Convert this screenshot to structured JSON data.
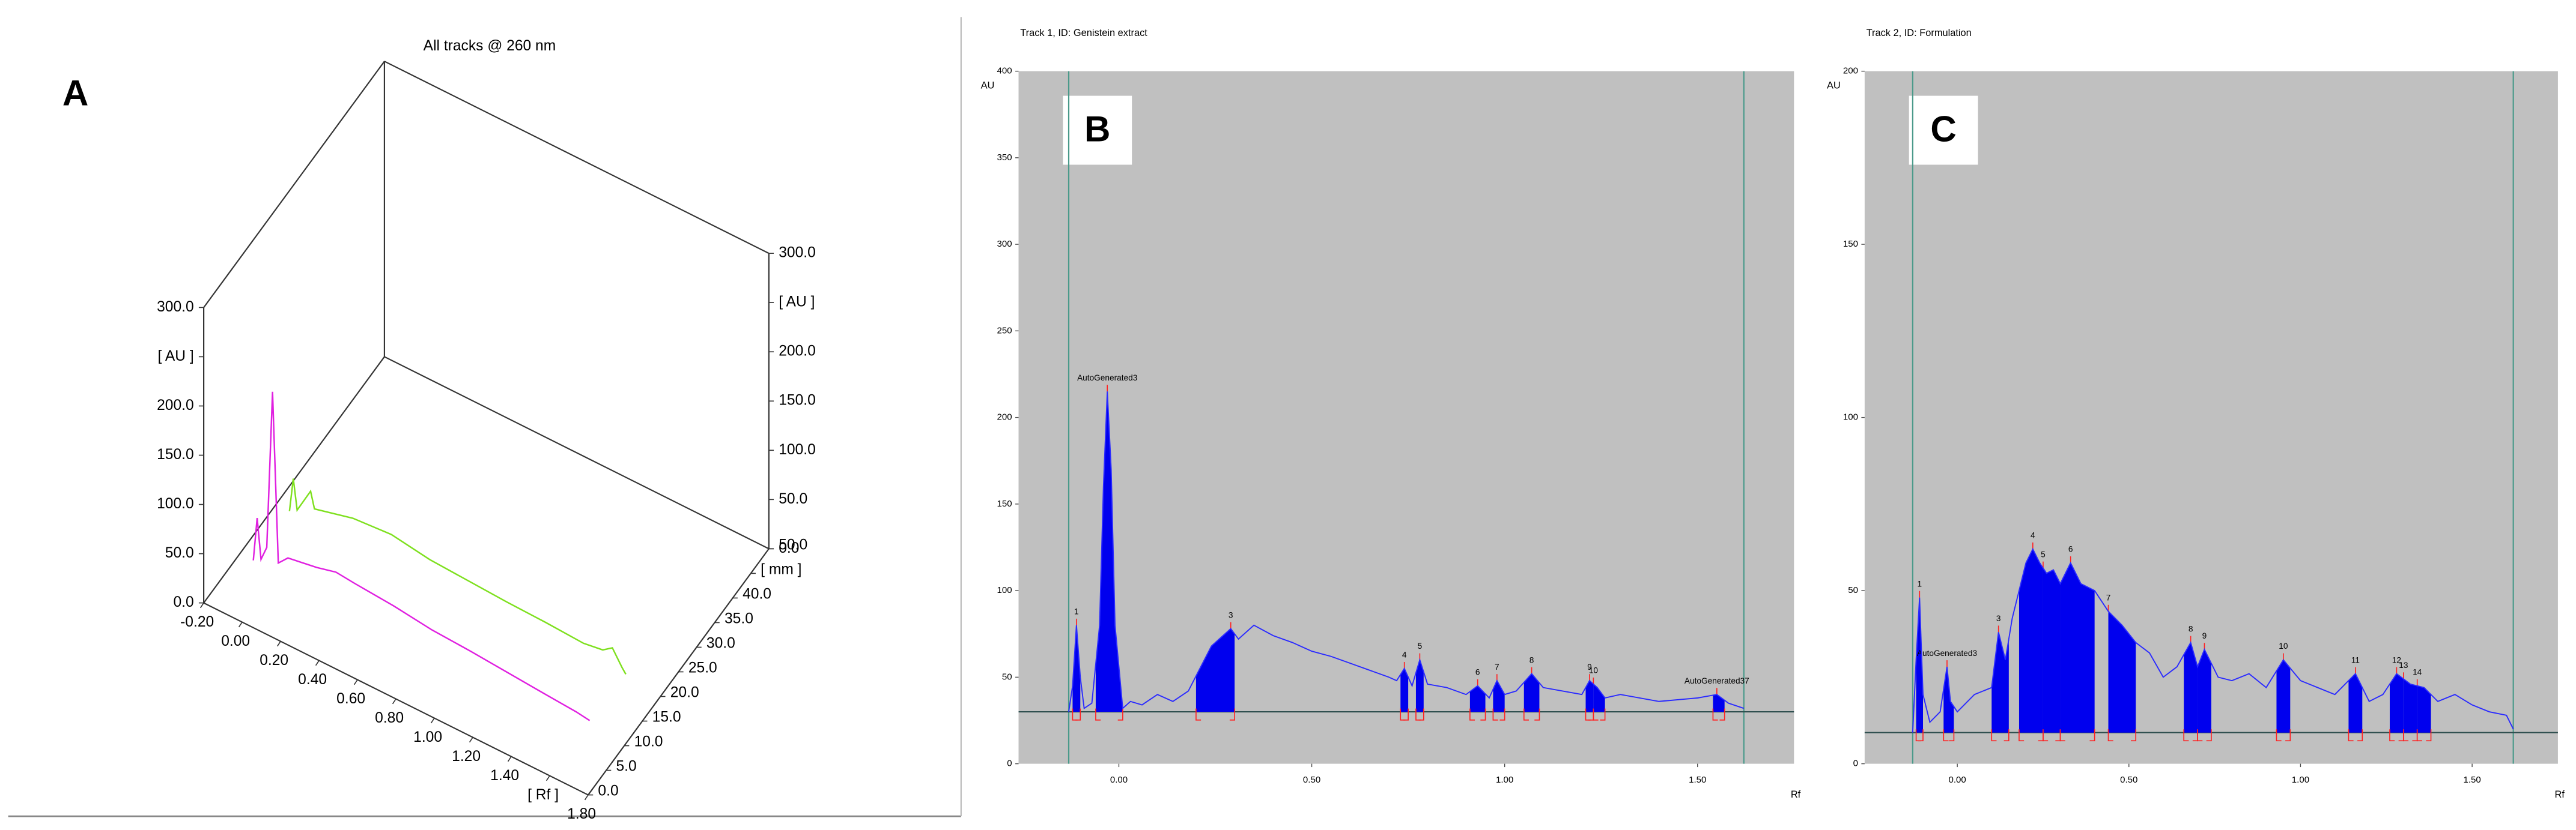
{
  "chart_data": [
    {
      "type": "line3d",
      "panel": "A",
      "title": "All tracks @ 260 nm",
      "xlim": [
        -0.2,
        1.8
      ],
      "ylim": [
        0,
        300
      ],
      "zlim": [
        0,
        50
      ],
      "xticks": [
        {
          "value": -0.2,
          "label": "-0.20"
        },
        {
          "value": 0,
          "label": "0.00"
        },
        {
          "value": 0.2,
          "label": "0.20"
        },
        {
          "value": 0.4,
          "label": "0.40"
        },
        {
          "value": 0.6,
          "label": "0.60"
        },
        {
          "value": 0.8,
          "label": "0.80"
        },
        {
          "value": 1.0,
          "label": "1.00"
        },
        {
          "value": 1.2,
          "label": "1.20"
        },
        {
          "value": 1.4,
          "label": "1.40"
        },
        {
          "value": 1.6,
          "label": "[ Rf ]"
        },
        {
          "value": 1.8,
          "label": "1.80"
        }
      ],
      "yticks": [
        {
          "value": 0,
          "label": "0.0"
        },
        {
          "value": 50,
          "label": "50.0"
        },
        {
          "value": 100,
          "label": "100.0"
        },
        {
          "value": 150,
          "label": "150.0"
        },
        {
          "value": 200,
          "label": "200.0"
        },
        {
          "value": 250,
          "label": "[ AU ]"
        },
        {
          "value": 300,
          "label": "300.0"
        }
      ],
      "zticks": [
        {
          "value": 0,
          "label": "0.0"
        },
        {
          "value": 5,
          "label": "5.0"
        },
        {
          "value": 10,
          "label": "10.0"
        },
        {
          "value": 15,
          "label": "15.0"
        },
        {
          "value": 20,
          "label": "20.0"
        },
        {
          "value": 25,
          "label": "25.0"
        },
        {
          "value": 30,
          "label": "30.0"
        },
        {
          "value": 35,
          "label": "35.0"
        },
        {
          "value": 40,
          "label": "40.0"
        },
        {
          "value": 45,
          "label": "[ mm ]"
        },
        {
          "value": 50,
          "label": "50.0"
        }
      ],
      "series": [
        {
          "color": "#e020e0",
          "depth": 10,
          "x": [
            -0.13,
            -0.11,
            -0.09,
            -0.06,
            -0.03,
            0.0,
            0.05,
            0.2,
            0.3,
            0.4,
            0.6,
            0.8,
            1.0,
            1.2,
            1.4,
            1.55,
            1.62
          ],
          "values": [
            0,
            45,
            5,
            20,
            181,
            10,
            20,
            25,
            30,
            28,
            25,
            20,
            18,
            15,
            12,
            10,
            8
          ]
        },
        {
          "color": "#7ee01e",
          "depth": 20,
          "x": [
            -0.13,
            -0.11,
            -0.09,
            -0.02,
            0.0,
            0.2,
            0.4,
            0.6,
            0.8,
            1.0,
            1.2,
            1.4,
            1.5,
            1.55,
            1.6,
            1.62
          ],
          "values": [
            0,
            35,
            5,
            31,
            15,
            25,
            28,
            22,
            20,
            18,
            17,
            15,
            18,
            25,
            10,
            5
          ]
        }
      ]
    },
    {
      "type": "densitogram",
      "panel": "B",
      "title": "Track 1, ID: Genistein extract",
      "y_label": "AU",
      "x_label": "Rf",
      "xlim": [
        -0.26,
        1.75
      ],
      "ylim": [
        0,
        400
      ],
      "xticks": [
        {
          "value": 0,
          "label": "0.00"
        },
        {
          "value": 0.5,
          "label": "0.50"
        },
        {
          "value": 1.0,
          "label": "1.00"
        },
        {
          "value": 1.5,
          "label": "1.50"
        }
      ],
      "yticks": [
        0,
        50,
        100,
        150,
        200,
        250,
        300,
        350,
        400
      ],
      "start_line": -0.13,
      "front_line": 1.62,
      "baseline": 30,
      "color": "#2a2aff",
      "fill": "#0000ee",
      "x": [
        -0.13,
        -0.12,
        -0.11,
        -0.1,
        -0.09,
        -0.07,
        -0.05,
        -0.04,
        -0.03,
        -0.02,
        -0.01,
        0.01,
        0.03,
        0.06,
        0.1,
        0.14,
        0.18,
        0.21,
        0.24,
        0.27,
        0.29,
        0.31,
        0.35,
        0.4,
        0.45,
        0.5,
        0.55,
        0.6,
        0.65,
        0.7,
        0.72,
        0.74,
        0.76,
        0.78,
        0.8,
        0.85,
        0.9,
        0.93,
        0.96,
        0.98,
        1.0,
        1.03,
        1.07,
        1.1,
        1.15,
        1.2,
        1.22,
        1.24,
        1.26,
        1.3,
        1.4,
        1.5,
        1.55,
        1.58,
        1.62
      ],
      "values": [
        30,
        45,
        80,
        50,
        32,
        35,
        80,
        160,
        215,
        170,
        80,
        32,
        36,
        34,
        40,
        36,
        42,
        55,
        68,
        74,
        78,
        72,
        80,
        74,
        70,
        65,
        62,
        58,
        54,
        50,
        48,
        55,
        45,
        60,
        46,
        44,
        40,
        45,
        38,
        48,
        40,
        42,
        52,
        44,
        42,
        40,
        48,
        44,
        38,
        40,
        36,
        38,
        40,
        35,
        32
      ],
      "peaks": [
        {
          "label": "1",
          "start": -0.12,
          "end": -0.1
        },
        {
          "label": "AutoGenerated3",
          "start": -0.06,
          "end": 0.01
        },
        {
          "label": "3",
          "start": 0.2,
          "end": 0.3
        },
        {
          "label": "4",
          "start": 0.73,
          "end": 0.75
        },
        {
          "label": "5",
          "start": 0.77,
          "end": 0.79
        },
        {
          "label": "6",
          "start": 0.91,
          "end": 0.95
        },
        {
          "label": "7",
          "start": 0.97,
          "end": 1.0
        },
        {
          "label": "8",
          "start": 1.05,
          "end": 1.09
        },
        {
          "label": "9",
          "start": 1.21,
          "end": 1.23
        },
        {
          "label": "10",
          "start": 1.23,
          "end": 1.26
        },
        {
          "label": "AutoGenerated37",
          "start": 1.54,
          "end": 1.57
        }
      ]
    },
    {
      "type": "densitogram",
      "panel": "C",
      "title": "Track 2, ID: Formulation",
      "y_label": "AU",
      "x_label": "Rf",
      "xlim": [
        -0.27,
        1.75
      ],
      "ylim": [
        0,
        200
      ],
      "xticks": [
        {
          "value": 0,
          "label": "0.00"
        },
        {
          "value": 0.5,
          "label": "0.50"
        },
        {
          "value": 1.0,
          "label": "1.00"
        },
        {
          "value": 1.5,
          "label": "1.50"
        }
      ],
      "yticks": [
        0,
        50,
        100,
        150,
        200
      ],
      "start_line": -0.13,
      "front_line": 1.62,
      "baseline": 9,
      "color": "#2a2aff",
      "fill": "#0000ee",
      "x": [
        -0.13,
        -0.12,
        -0.11,
        -0.1,
        -0.08,
        -0.05,
        -0.03,
        -0.02,
        0.0,
        0.05,
        0.1,
        0.12,
        0.14,
        0.16,
        0.18,
        0.2,
        0.22,
        0.24,
        0.26,
        0.28,
        0.3,
        0.33,
        0.36,
        0.4,
        0.44,
        0.48,
        0.52,
        0.56,
        0.6,
        0.64,
        0.68,
        0.7,
        0.72,
        0.76,
        0.8,
        0.85,
        0.9,
        0.95,
        1.0,
        1.05,
        1.1,
        1.16,
        1.2,
        1.24,
        1.28,
        1.32,
        1.36,
        1.4,
        1.45,
        1.5,
        1.55,
        1.6,
        1.62
      ],
      "values": [
        9,
        30,
        48,
        20,
        12,
        15,
        28,
        18,
        15,
        20,
        22,
        38,
        30,
        42,
        50,
        58,
        62,
        58,
        55,
        56,
        52,
        58,
        52,
        50,
        44,
        40,
        35,
        32,
        25,
        28,
        35,
        28,
        33,
        25,
        24,
        26,
        22,
        30,
        24,
        22,
        20,
        26,
        18,
        20,
        26,
        23,
        22,
        18,
        20,
        17,
        15,
        14,
        10
      ],
      "peaks": [
        {
          "label": "1",
          "start": -0.12,
          "end": -0.1
        },
        {
          "label": "AutoGenerated3",
          "start": -0.04,
          "end": -0.01
        },
        {
          "label": "3",
          "start": 0.1,
          "end": 0.15
        },
        {
          "label": "4",
          "start": 0.18,
          "end": 0.25
        },
        {
          "label": "5",
          "start": 0.25,
          "end": 0.3
        },
        {
          "label": "6",
          "start": 0.3,
          "end": 0.4
        },
        {
          "label": "7",
          "start": 0.44,
          "end": 0.52
        },
        {
          "label": "8",
          "start": 0.66,
          "end": 0.7
        },
        {
          "label": "9",
          "start": 0.7,
          "end": 0.74
        },
        {
          "label": "10",
          "start": 0.93,
          "end": 0.97
        },
        {
          "label": "11",
          "start": 1.14,
          "end": 1.18
        },
        {
          "label": "12",
          "start": 1.26,
          "end": 1.3
        },
        {
          "label": "13",
          "start": 1.3,
          "end": 1.34
        },
        {
          "label": "14",
          "start": 1.34,
          "end": 1.38
        }
      ]
    }
  ]
}
